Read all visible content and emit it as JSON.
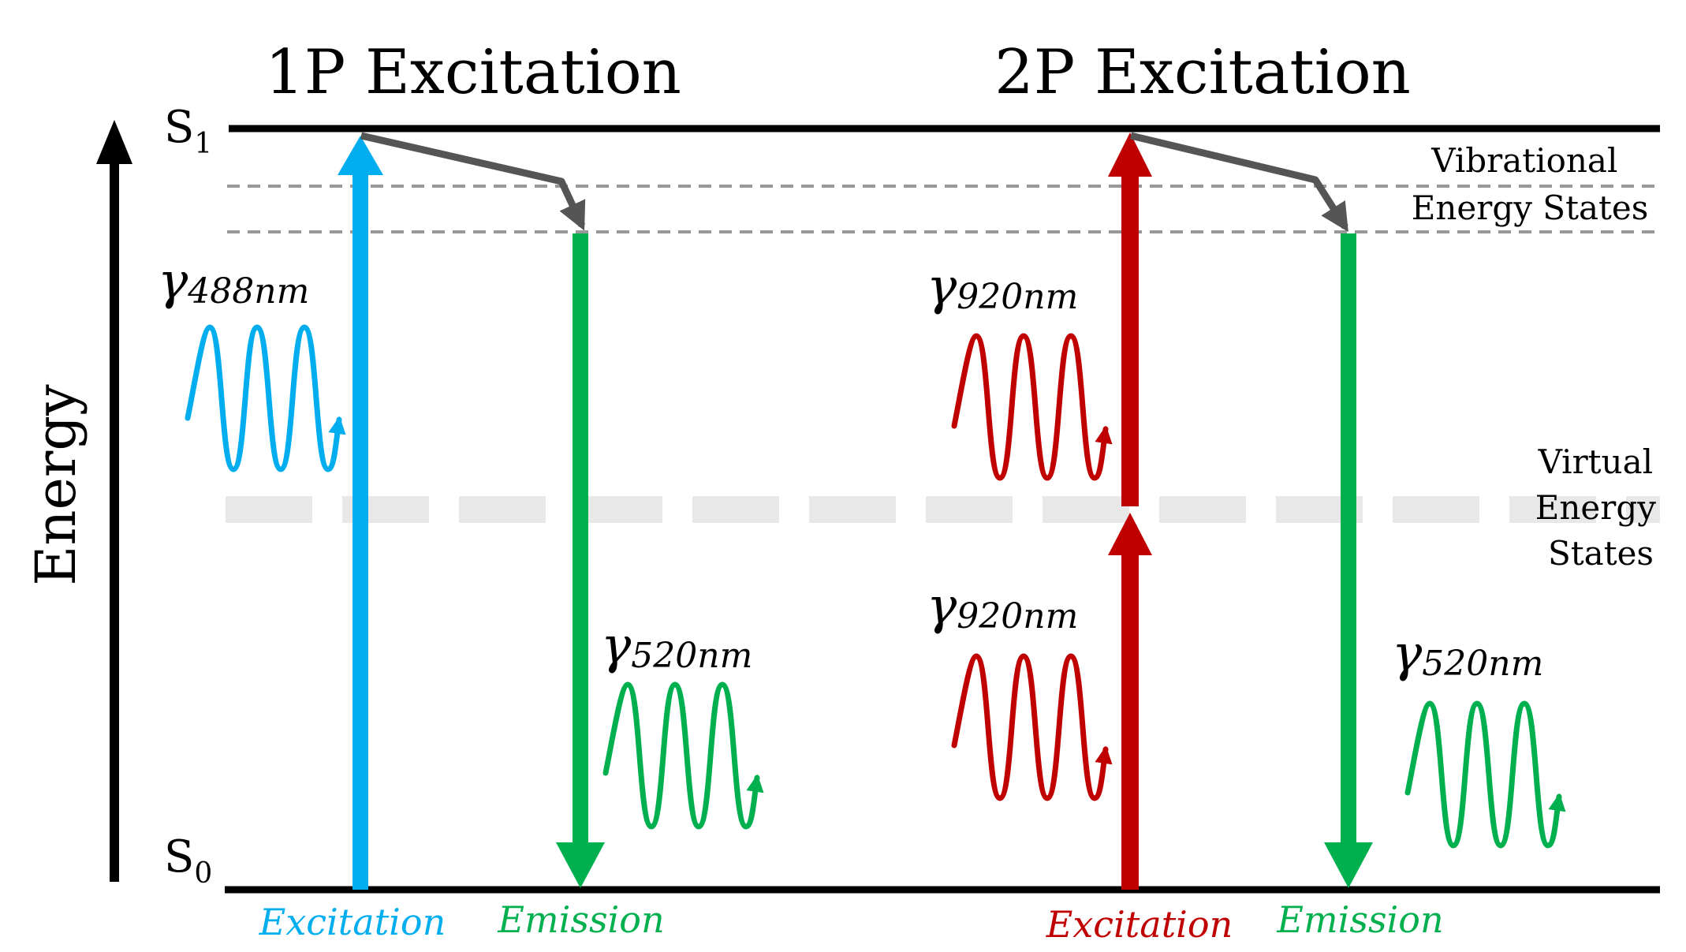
{
  "titles": {
    "one_photon": "1P Excitation",
    "two_photon": "2P Excitation"
  },
  "axis": {
    "label": "Energy"
  },
  "levels": {
    "s1": {
      "main": "S",
      "sub": "1"
    },
    "s0": {
      "main": "S",
      "sub": "0"
    }
  },
  "side_labels": {
    "vibrational": [
      "Vibrational",
      "Energy States"
    ],
    "virtual": [
      "Virtual",
      "Energy",
      "States"
    ]
  },
  "photons": {
    "p488": {
      "symbol": "γ",
      "sub": "488nm"
    },
    "p520a": {
      "symbol": "γ",
      "sub": "520nm"
    },
    "p920a": {
      "symbol": "γ",
      "sub": "920nm"
    },
    "p920b": {
      "symbol": "γ",
      "sub": "920nm"
    },
    "p520b": {
      "symbol": "γ",
      "sub": "520nm"
    }
  },
  "bottom_labels": {
    "excitation_1p": "Excitation",
    "emission_1p": "Emission",
    "excitation_2p": "Excitation",
    "emission_2p": "Emission"
  },
  "colors": {
    "blue": "#00aeef",
    "green": "#00b04f",
    "red": "#c00000",
    "relax_gray": "#555555",
    "vib_dash": "#999999",
    "virtual_dash": "#e8e8e8"
  }
}
